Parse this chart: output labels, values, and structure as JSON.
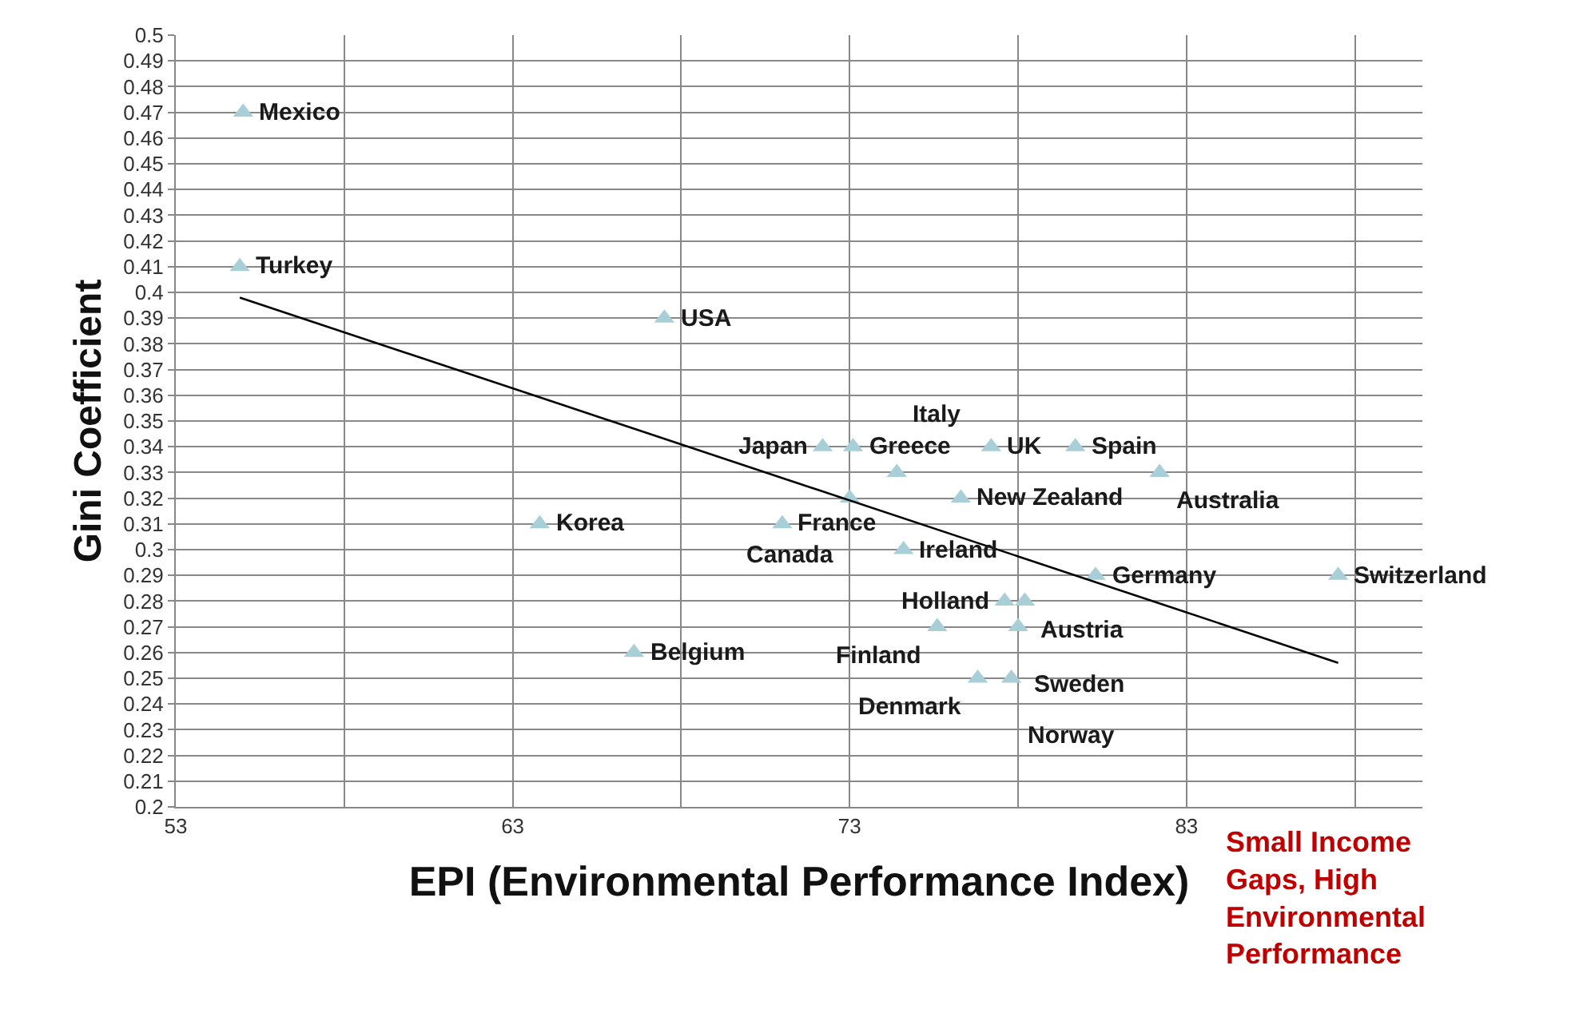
{
  "chart_data": {
    "type": "scatter",
    "xlabel": "EPI (Environmental Performance Index)",
    "ylabel": "Gini Coefficient",
    "x": [
      55.0,
      54.9,
      67.5,
      63.8,
      66.6,
      71.0,
      72.2,
      73.1,
      73.0,
      74.4,
      76.3,
      77.2,
      79.7,
      82.2,
      74.6,
      80.3,
      87.5,
      77.6,
      78.2,
      78.0,
      75.6,
      76.8,
      77.8
    ],
    "series": [
      {
        "color": "#a8cfd8",
        "marker": "triangle",
        "values": [
          0.47,
          0.41,
          0.39,
          0.31,
          0.26,
          0.31,
          0.34,
          0.34,
          0.32,
          0.33,
          0.32,
          0.34,
          0.34,
          0.33,
          0.3,
          0.29,
          0.29,
          0.28,
          0.28,
          0.27,
          0.27,
          0.25,
          0.25
        ]
      },
      {
        "type": "line",
        "color": "#000000",
        "x": [
          54.9,
          87.5
        ],
        "values": [
          0.398,
          0.256
        ]
      }
    ],
    "grid": true,
    "legend": false,
    "xlim": [
      53,
      90
    ],
    "xticks": [
      53,
      {
        "value": 58,
        "label": null
      },
      63,
      {
        "value": 68,
        "label": null
      },
      73,
      {
        "value": 78,
        "label": null
      },
      83,
      {
        "value": 88,
        "label": null
      }
    ],
    "ylim": [
      0.2,
      0.5
    ],
    "yticks": [
      0.2,
      0.21,
      0.22,
      0.23,
      0.24,
      0.25,
      0.26,
      0.27,
      0.28,
      0.29,
      0.3,
      0.31,
      0.32,
      0.33,
      0.34,
      0.35,
      0.36,
      0.37,
      0.38,
      0.39,
      0.4,
      0.41,
      0.42,
      0.43,
      0.44,
      0.45,
      0.46,
      0.47,
      0.48,
      0.49,
      0.5
    ],
    "annotations": [
      {
        "text": "Mexico",
        "x": 55.0,
        "y": 0.47
      },
      {
        "text": "Turkey",
        "x": 54.9,
        "y": 0.41
      },
      {
        "text": "USA",
        "x": 67.5,
        "y": 0.39
      },
      {
        "text": "Korea",
        "x": 63.8,
        "y": 0.31
      },
      {
        "text": "Belgium",
        "x": 66.6,
        "y": 0.26
      },
      {
        "text": "France",
        "x": 71.0,
        "y": 0.31
      },
      {
        "text": "Japan",
        "x": 72.2,
        "y": 0.34
      },
      {
        "text": "Greece",
        "x": 73.1,
        "y": 0.34
      },
      {
        "text": "Canada",
        "x": 73.0,
        "y": 0.32
      },
      {
        "text": "Italy",
        "x": 74.4,
        "y": 0.33
      },
      {
        "text": "New Zealand",
        "x": 76.3,
        "y": 0.32
      },
      {
        "text": "UK",
        "x": 77.2,
        "y": 0.34
      },
      {
        "text": "Spain",
        "x": 79.7,
        "y": 0.34
      },
      {
        "text": "Australia",
        "x": 82.2,
        "y": 0.33
      },
      {
        "text": "Ireland",
        "x": 74.6,
        "y": 0.3
      },
      {
        "text": "Germany",
        "x": 80.3,
        "y": 0.29
      },
      {
        "text": "Switzerland",
        "x": 87.5,
        "y": 0.29
      },
      {
        "text": "Holland",
        "x": 77.6,
        "y": 0.28
      },
      {
        "text": "Austria",
        "x": 78.2,
        "y": 0.28
      },
      {
        "text": "Sweden",
        "x": 78.0,
        "y": 0.27
      },
      {
        "text": "Finland",
        "x": 75.6,
        "y": 0.27
      },
      {
        "text": "Denmark",
        "x": 76.8,
        "y": 0.25
      },
      {
        "text": "Norway",
        "x": 77.8,
        "y": 0.25
      },
      "Small Income Gaps, High Environmental Performance"
    ]
  }
}
